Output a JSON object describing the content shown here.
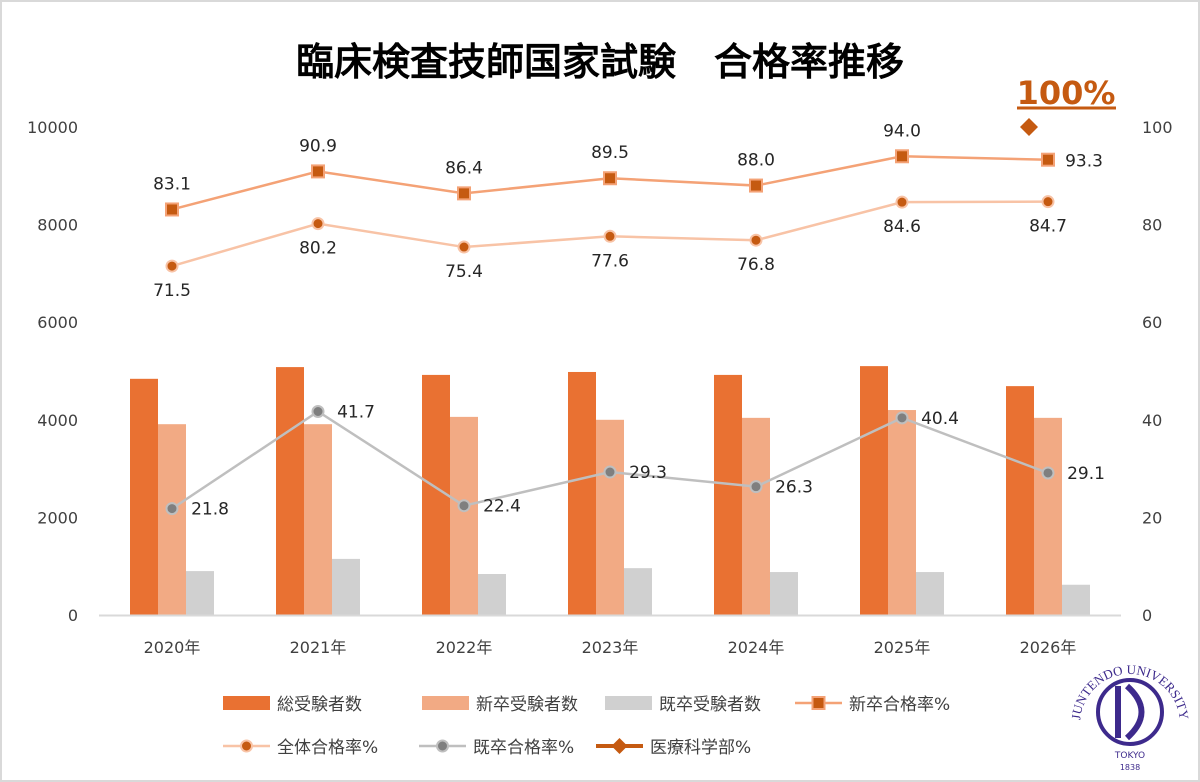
{
  "chart_data": {
    "type": "bar+line",
    "title": "臨床検査技師国家試験　合格率推移",
    "categories": [
      "2020年",
      "2021年",
      "2022年",
      "2023年",
      "2024年",
      "2025年",
      "2026年"
    ],
    "y_left": {
      "range": [
        0,
        10000
      ],
      "ticks": [
        0,
        2000,
        4000,
        6000,
        8000,
        10000
      ]
    },
    "y_right": {
      "range": [
        0,
        100
      ],
      "ticks": [
        0,
        20,
        40,
        60,
        80,
        100
      ]
    },
    "grid": false,
    "legend_placement": "bottom",
    "series": [
      {
        "name": "総受験者数",
        "kind": "bar",
        "axis": "left",
        "color": "#e97132",
        "values": [
          4840,
          5080,
          4920,
          4980,
          4920,
          5100,
          4690
        ]
      },
      {
        "name": "新卒受験者数",
        "kind": "bar",
        "axis": "left",
        "color": "#f2aa84",
        "values": [
          3910,
          3910,
          4060,
          4000,
          4040,
          4200,
          4040
        ]
      },
      {
        "name": "既卒受験者数",
        "kind": "bar",
        "axis": "left",
        "color": "#d0d0d0",
        "values": [
          900,
          1150,
          840,
          960,
          880,
          880,
          620
        ]
      },
      {
        "name": "新卒合格率%",
        "kind": "line",
        "marker": "square",
        "axis": "right",
        "color": "#f4a276",
        "marker_color": "#c55a11",
        "values": [
          83.1,
          90.9,
          86.4,
          89.5,
          88.0,
          94.0,
          93.3
        ],
        "labels": [
          "83.1",
          "90.9",
          "86.4",
          "89.5",
          "88.0",
          "94.0",
          "93.3"
        ]
      },
      {
        "name": "全体合格率%",
        "kind": "line",
        "marker": "circle",
        "axis": "right",
        "color": "#f8c3a6",
        "marker_color": "#c55a11",
        "values": [
          71.5,
          80.2,
          75.4,
          77.6,
          76.8,
          84.6,
          84.7
        ],
        "labels": [
          "71.5",
          "80.2",
          "75.4",
          "77.6",
          "76.8",
          "84.6",
          "84.7"
        ]
      },
      {
        "name": "既卒合格率%",
        "kind": "line",
        "marker": "circle",
        "axis": "right",
        "color": "#bfbfbf",
        "marker_color": "#7f7f7f",
        "values": [
          21.8,
          41.7,
          22.4,
          29.3,
          26.3,
          40.4,
          29.1
        ],
        "labels": [
          "21.8",
          "41.7",
          "22.4",
          "29.3",
          "26.3",
          "40.4",
          "29.1"
        ]
      },
      {
        "name": "医療科学部%",
        "kind": "line",
        "marker": "diamond",
        "axis": "right",
        "color": "#c55a11",
        "marker_color": "#c55a11",
        "values": [
          null,
          null,
          null,
          null,
          null,
          null,
          100
        ]
      }
    ],
    "annotation": {
      "text": "100%",
      "color": "#c55a11"
    }
  },
  "logo": {
    "text": "JUNTENDO UNIVERSITY",
    "sub": "TOKYO",
    "year": "1838",
    "color": "#3d2a8c"
  }
}
